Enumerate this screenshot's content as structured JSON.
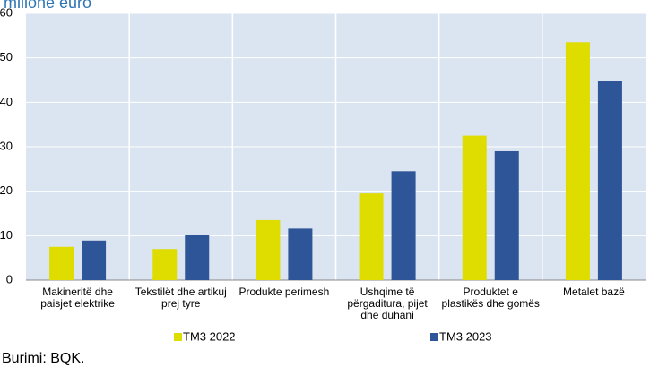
{
  "chart_data": {
    "type": "bar",
    "title": "milionë euro",
    "categories": [
      "Makineritë dhe paisjet elektrike",
      "Tekstilët dhe artikuj prej tyre",
      "Produkte perimesh",
      "Ushqime të përgaditura, pijet dhe duhani",
      "Produktet e plastikës dhe gomës",
      "Metalet bazë"
    ],
    "series": [
      {
        "name": "TM3 2022",
        "color": "#dfdc00",
        "values": [
          7.5,
          7.0,
          13.5,
          19.5,
          32.5,
          53.5
        ]
      },
      {
        "name": "TM3 2023",
        "color": "#2e5597",
        "values": [
          8.9,
          10.2,
          11.6,
          24.5,
          29.0,
          44.7
        ]
      }
    ],
    "ylim": [
      0,
      60
    ],
    "yticks": [
      0,
      10,
      20,
      30,
      40,
      50,
      60
    ],
    "grid": true,
    "source": "Burimi: BQK."
  }
}
